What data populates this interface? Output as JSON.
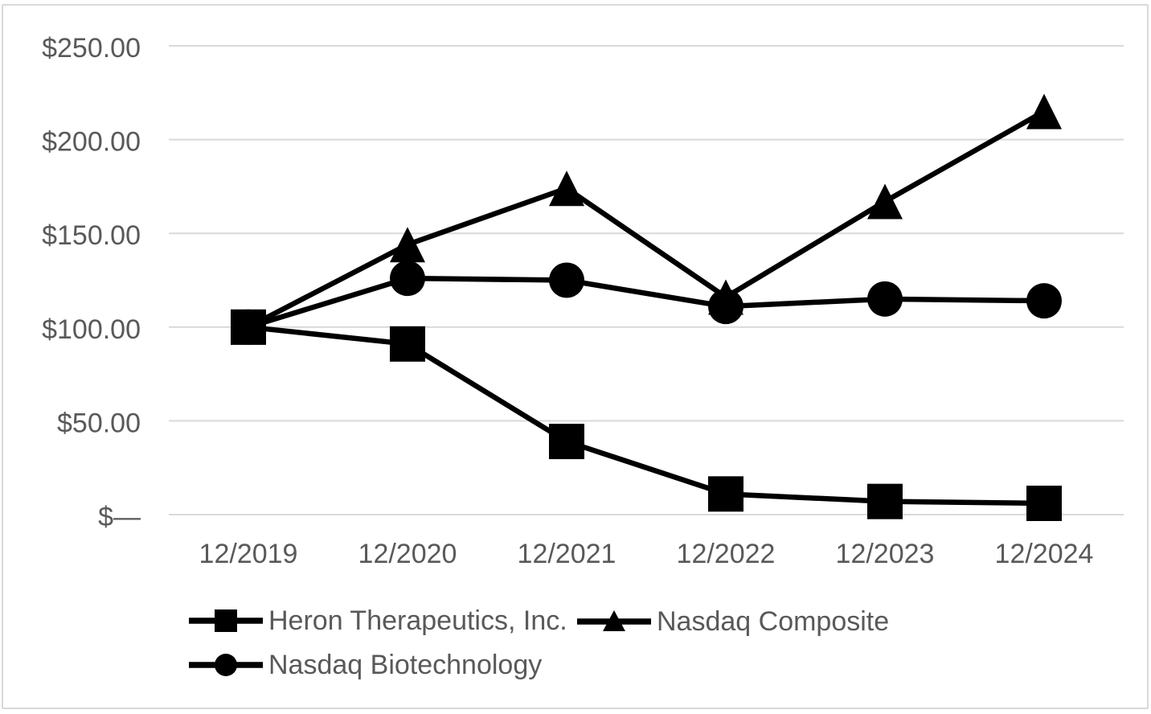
{
  "colors": {
    "series_line": "#000000",
    "marker_fill": "#000000",
    "gridline": "#d9d9d9",
    "axis_label_text": "#595959",
    "legend_text": "#595959",
    "frame_border": "#d9d9d9",
    "background": "#ffffff"
  },
  "chart_data": {
    "type": "line",
    "title": "",
    "xlabel": "",
    "ylabel": "",
    "grid": "horizontal-only",
    "legend_position": "bottom-left, two rows",
    "ylim": [
      0,
      250
    ],
    "categories": [
      "12/2019",
      "12/2020",
      "12/2021",
      "12/2022",
      "12/2023",
      "12/2024"
    ],
    "y_ticks": [
      {
        "value": 0,
        "label": "$—"
      },
      {
        "value": 50,
        "label": "$50.00"
      },
      {
        "value": 100,
        "label": "$100.00"
      },
      {
        "value": 150,
        "label": "$150.00"
      },
      {
        "value": 200,
        "label": "$200.00"
      },
      {
        "value": 250,
        "label": "$250.00"
      }
    ],
    "series": [
      {
        "name": "Heron Therapeutics, Inc.",
        "marker": "square",
        "values": [
          100,
          91,
          39,
          11,
          7,
          6
        ]
      },
      {
        "name": "Nasdaq Composite",
        "marker": "triangle",
        "values": [
          100,
          144,
          174,
          116,
          167,
          215
        ]
      },
      {
        "name": "Nasdaq Biotechnology",
        "marker": "circle",
        "values": [
          100,
          126,
          125,
          111,
          115,
          114
        ]
      }
    ]
  }
}
